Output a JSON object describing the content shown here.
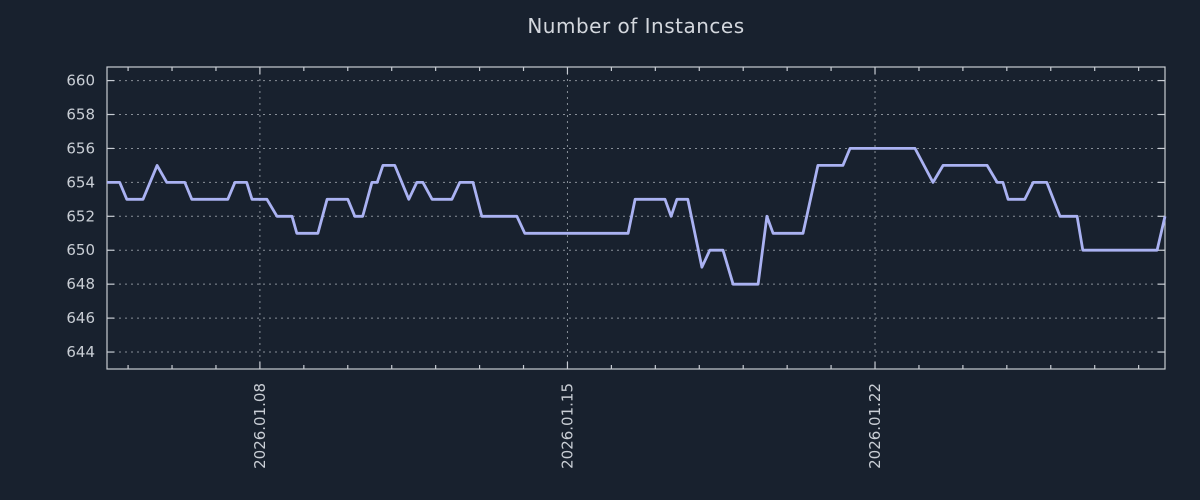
{
  "chart_data": {
    "type": "line",
    "title": "Number of Instances",
    "xlabel": "",
    "ylabel": "",
    "legend_position": "none",
    "grid": {
      "style": "dotted",
      "x_major": true,
      "y_major": true
    },
    "x_axis": {
      "unit": "days relative to 2026-01-08",
      "xlim_days": [
        -3.48,
        20.6
      ],
      "tick_positions_days": [
        0,
        7,
        14
      ],
      "tick_labels": [
        "2026.01.08",
        "2026.01.15",
        "2026.01.22"
      ],
      "tick_label_rotation_deg": 90,
      "minor_tick_interval_days": 1
    },
    "y_axis": {
      "ticks": [
        644,
        646,
        648,
        650,
        652,
        654,
        656,
        658,
        660
      ],
      "ylim": [
        643.0,
        660.8
      ]
    },
    "colors": {
      "background": "#18212e",
      "frame": "#c7ccd3",
      "gridline": "#aeb4bc",
      "title_text": "#d3d7dd",
      "tick_text": "#c9ced5",
      "line": "#aab2f2"
    },
    "series": [
      {
        "name": "Number of Instances",
        "color": "#aab2f2",
        "points": [
          [
            -3.48,
            654
          ],
          [
            -3.19,
            654
          ],
          [
            -3.03,
            653
          ],
          [
            -2.66,
            653
          ],
          [
            -2.34,
            655
          ],
          [
            -2.12,
            654
          ],
          [
            -1.71,
            654
          ],
          [
            -1.55,
            653
          ],
          [
            -0.73,
            653
          ],
          [
            -0.57,
            654
          ],
          [
            -0.3,
            654
          ],
          [
            -0.18,
            653
          ],
          [
            0.16,
            653
          ],
          [
            0.39,
            652
          ],
          [
            0.73,
            652
          ],
          [
            0.84,
            651
          ],
          [
            1.32,
            651
          ],
          [
            1.53,
            653
          ],
          [
            2.0,
            653
          ],
          [
            2.16,
            652
          ],
          [
            2.34,
            652
          ],
          [
            2.55,
            654
          ],
          [
            2.67,
            654
          ],
          [
            2.8,
            655
          ],
          [
            3.07,
            655
          ],
          [
            3.39,
            653
          ],
          [
            3.57,
            654
          ],
          [
            3.71,
            654
          ],
          [
            3.92,
            653
          ],
          [
            4.37,
            653
          ],
          [
            4.55,
            654
          ],
          [
            4.85,
            654
          ],
          [
            5.05,
            652
          ],
          [
            5.85,
            652
          ],
          [
            6.03,
            651
          ],
          [
            8.38,
            651
          ],
          [
            8.54,
            653
          ],
          [
            9.22,
            653
          ],
          [
            9.36,
            652
          ],
          [
            9.49,
            653
          ],
          [
            9.74,
            653
          ],
          [
            10.06,
            649
          ],
          [
            10.24,
            650
          ],
          [
            10.54,
            650
          ],
          [
            10.77,
            648
          ],
          [
            11.34,
            648
          ],
          [
            11.54,
            652
          ],
          [
            11.68,
            651
          ],
          [
            12.36,
            651
          ],
          [
            12.7,
            655
          ],
          [
            13.27,
            655
          ],
          [
            13.43,
            656
          ],
          [
            14.91,
            656
          ],
          [
            15.32,
            654
          ],
          [
            15.55,
            655
          ],
          [
            16.55,
            655
          ],
          [
            16.78,
            654
          ],
          [
            16.91,
            654
          ],
          [
            17.03,
            653
          ],
          [
            17.41,
            653
          ],
          [
            17.6,
            654
          ],
          [
            17.91,
            654
          ],
          [
            18.21,
            652
          ],
          [
            18.6,
            652
          ],
          [
            18.73,
            650
          ],
          [
            20.42,
            650
          ],
          [
            20.6,
            652
          ]
        ]
      }
    ]
  }
}
